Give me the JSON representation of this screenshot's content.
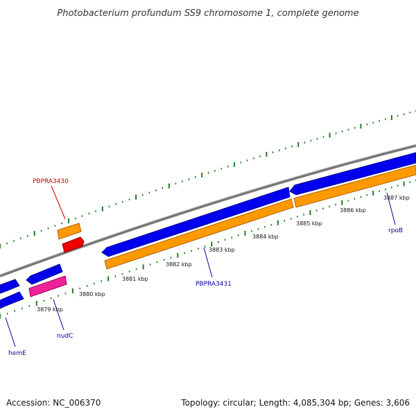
{
  "title": "Photobacterium profundum SS9 chromosome 1, complete genome",
  "footer": {
    "accession": "Accession: NC_006370",
    "summary": "Topology: circular; Length: 4,085,304 bp; Genes: 3,606"
  },
  "colors": {
    "backbone": "#8c8c8c",
    "forward_gene": "#0000ee",
    "reverse_gene": "#ff9900",
    "trna": "#ee0000",
    "misc": "#ee2299",
    "tick": "#1f7a1f",
    "label_red": "#cc0000",
    "label_blue": "#000099"
  },
  "ticks": {
    "labels": [
      "3879 kbp",
      "3880 kbp",
      "3881 kbp",
      "3882 kbp",
      "3883 kbp",
      "3884 kbp",
      "3885 kbp",
      "3886 kbp",
      "3887 kbp"
    ]
  },
  "genes": [
    {
      "name": "hemE",
      "strand": "+",
      "kind": "cds"
    },
    {
      "name": "nudC",
      "strand": "+",
      "kind": "cds"
    },
    {
      "name": "PBPRA3430",
      "strand": "-",
      "kind": "trna"
    },
    {
      "name": "PBPRA3431",
      "strand": "+",
      "kind": "cds"
    },
    {
      "name": "rpoB",
      "strand": "+",
      "kind": "cds"
    }
  ]
}
